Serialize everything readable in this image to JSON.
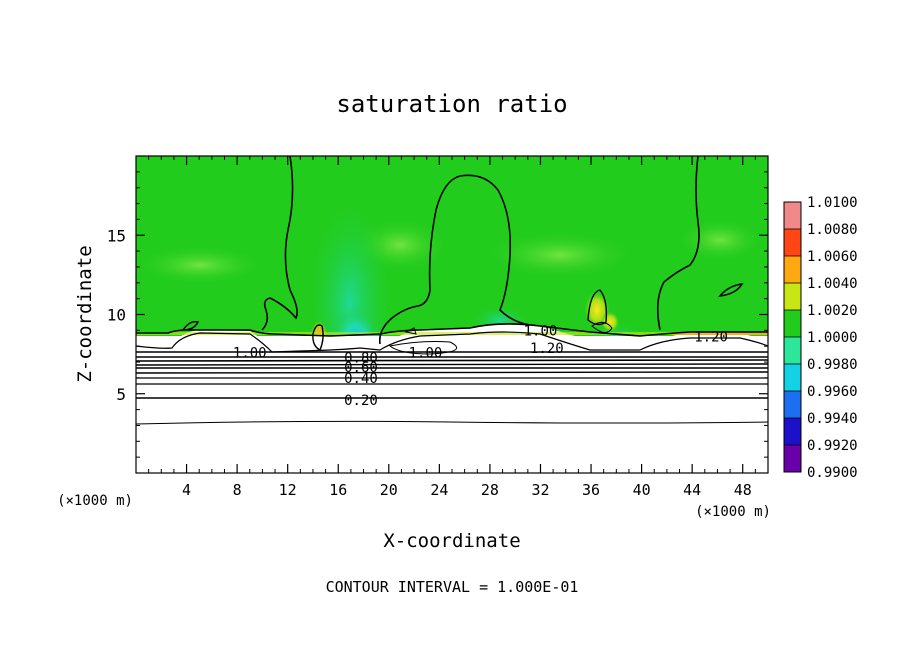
{
  "chart_data": {
    "type": "heatmap",
    "title": "saturation ratio",
    "xlabel": "X-coordinate",
    "ylabel": "Z-coordinate",
    "x_unit_left": "(×1000 m)",
    "x_unit_right": "(×1000 m)",
    "xlim": [
      0,
      50
    ],
    "ylim": [
      0,
      20
    ],
    "x_ticks": [
      4,
      8,
      12,
      16,
      20,
      24,
      28,
      32,
      36,
      40,
      44,
      48
    ],
    "y_ticks": [
      5,
      10,
      15
    ],
    "footer": "CONTOUR INTERVAL = 1.000E-01",
    "colorbar": {
      "levels": [
        "0.9900",
        "0.9920",
        "0.9940",
        "0.9960",
        "0.9980",
        "1.0000",
        "1.0020",
        "1.0040",
        "1.0060",
        "1.0080",
        "1.0100"
      ],
      "colors": [
        "#6a00a8",
        "#1c10c8",
        "#1e6ef2",
        "#14d2e6",
        "#2ce69a",
        "#22cc1c",
        "#c8e614",
        "#ffa814",
        "#ff4614",
        "#f08a8a"
      ]
    },
    "contour_labels": [
      {
        "text": "1.00",
        "x": 9.0,
        "z": 7.6
      },
      {
        "text": "0.80",
        "x": 17.8,
        "z": 7.3
      },
      {
        "text": "0.60",
        "x": 17.8,
        "z": 6.7
      },
      {
        "text": "0.40",
        "x": 17.8,
        "z": 6.0
      },
      {
        "text": "0.20",
        "x": 17.8,
        "z": 4.6
      },
      {
        "text": "1.00",
        "x": 22.9,
        "z": 7.6
      },
      {
        "text": "1.00",
        "x": 32.0,
        "z": 9.0
      },
      {
        "text": "1.20",
        "x": 32.5,
        "z": 7.9
      },
      {
        "text": "1.20",
        "x": 45.5,
        "z": 8.6
      }
    ]
  }
}
